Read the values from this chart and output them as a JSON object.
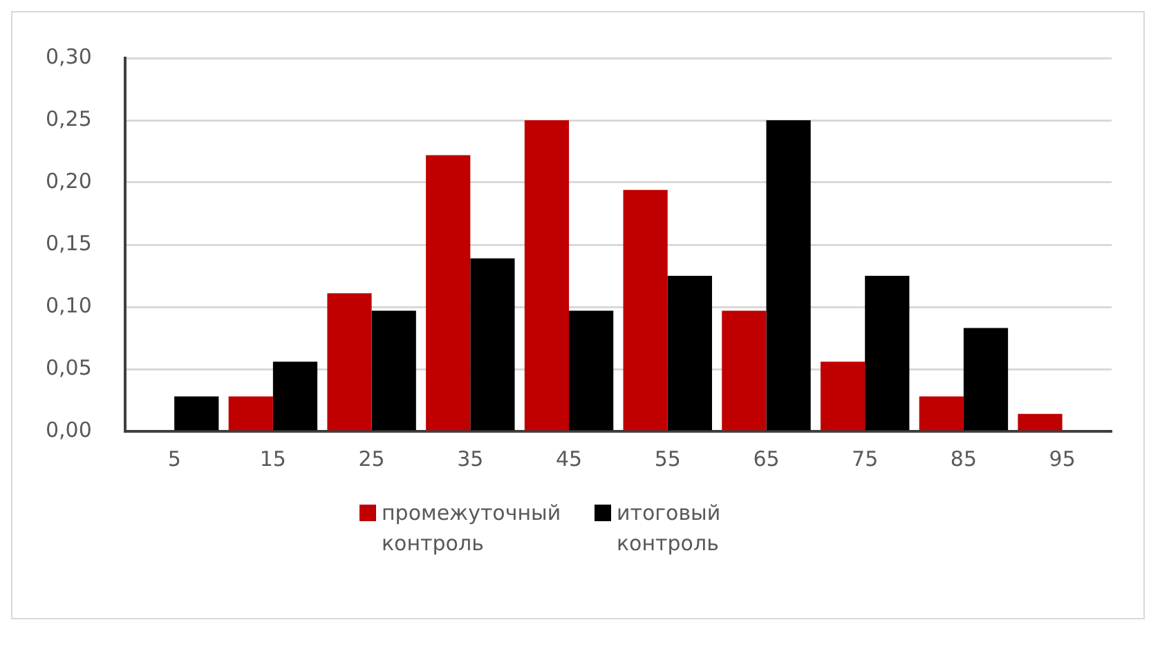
{
  "chart_data": {
    "type": "bar",
    "categories": [
      "5",
      "15",
      "25",
      "35",
      "45",
      "55",
      "65",
      "75",
      "85",
      "95"
    ],
    "series": [
      {
        "name": "промежуточный контроль",
        "color": "#c00000",
        "values": [
          0,
          0.028,
          0.111,
          0.222,
          0.25,
          0.194,
          0.097,
          0.056,
          0.028,
          0.014
        ]
      },
      {
        "name": "итоговый контроль",
        "color": "#000000",
        "values": [
          0.028,
          0.056,
          0.097,
          0.139,
          0.097,
          0.125,
          0.25,
          0.125,
          0.083,
          0
        ]
      }
    ],
    "ylim": [
      0,
      0.3
    ],
    "yticks": [
      {
        "value": 0,
        "label": "0,00"
      },
      {
        "value": 0.05,
        "label": "0,05"
      },
      {
        "value": 0.1,
        "label": "0,10"
      },
      {
        "value": 0.15,
        "label": "0,15"
      },
      {
        "value": 0.2,
        "label": "0,20"
      },
      {
        "value": 0.25,
        "label": "0,25"
      },
      {
        "value": 0.3,
        "label": "0,30"
      }
    ],
    "grid": "y",
    "legend": "bottom"
  }
}
